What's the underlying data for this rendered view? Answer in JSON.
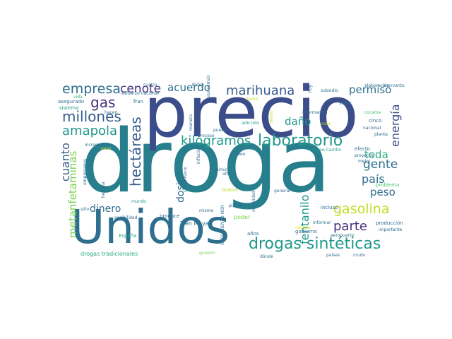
{
  "palette": {
    "dark_purple": "#46327e",
    "indigo": "#3b4d8a",
    "navy": "#365c8d",
    "steel": "#2e6e8e",
    "blue_teal": "#277f8e",
    "teal": "#1f988b",
    "green_teal": "#2aaa82",
    "green": "#4ac16d",
    "light_green": "#7ad151",
    "lime": "#bddf26",
    "yellow": "#e2e418",
    "deep_purple": "#482878",
    "white": "#ffffff"
  },
  "words": [
    {
      "text": "droga",
      "color": "blue_teal"
    },
    {
      "text": "precio",
      "color": "indigo"
    },
    {
      "text": "Unidos",
      "color": "steel"
    },
    {
      "text": "drogas sintéticas",
      "color": "teal"
    },
    {
      "text": "laboratorio",
      "color": "teal"
    },
    {
      "text": "hectáreas",
      "color": "navy"
    },
    {
      "text": "gasolina",
      "color": "lime"
    },
    {
      "text": "millones",
      "color": "navy"
    },
    {
      "text": "kilógramos",
      "color": "teal"
    },
    {
      "text": "marihuana",
      "color": "navy"
    },
    {
      "text": "metanfetaminas",
      "color": "light_green"
    },
    {
      "text": "empresa",
      "color": "steel"
    },
    {
      "text": "amapola",
      "color": "teal"
    },
    {
      "text": "energía",
      "color": "indigo"
    },
    {
      "text": "fentanilo",
      "color": "teal"
    },
    {
      "text": "cenote",
      "color": "dark_purple"
    },
    {
      "text": "acuerdo",
      "color": "steel"
    },
    {
      "text": "permiso",
      "color": "steel"
    },
    {
      "text": "gente",
      "color": "steel"
    },
    {
      "text": "toda",
      "color": "green_teal"
    },
    {
      "text": "país",
      "color": "steel"
    },
    {
      "text": "peso",
      "color": "steel"
    },
    {
      "text": "parte",
      "color": "dark_purple"
    },
    {
      "text": "gas",
      "color": "dark_purple"
    },
    {
      "text": "daño",
      "color": "teal"
    },
    {
      "text": "dosis",
      "color": "steel"
    },
    {
      "text": "cuanto",
      "color": "navy"
    },
    {
      "text": "dinero",
      "color": "steel"
    },
    {
      "text": "vida",
      "color": "green_teal"
    },
    {
      "text": "asegurado",
      "color": "steel"
    },
    {
      "text": "Tran",
      "color": "steel"
    },
    {
      "text": "cuatro",
      "color": "steel"
    },
    {
      "text": "Biden",
      "color": "steel"
    },
    {
      "text": "uso común",
      "color": "steel"
    },
    {
      "text": "hoy",
      "color": "steel"
    },
    {
      "text": "subsidio",
      "color": "steel"
    },
    {
      "text": "elaboración",
      "color": "steel"
    },
    {
      "text": "enervante",
      "color": "steel"
    },
    {
      "text": "valor",
      "color": "steel"
    },
    {
      "text": "cocaína",
      "color": "green"
    },
    {
      "text": "cinco",
      "color": "steel"
    },
    {
      "text": "información",
      "color": "steel"
    },
    {
      "text": "vendo",
      "color": "lime"
    },
    {
      "text": "cosa",
      "color": "lime"
    },
    {
      "text": "adicción",
      "color": "teal"
    },
    {
      "text": "nacional",
      "color": "steel"
    },
    {
      "text": "planta",
      "color": "steel"
    },
    {
      "text": "efecto",
      "color": "steel"
    },
    {
      "text": "proyecto",
      "color": "steel"
    },
    {
      "text": "mejor",
      "color": "steel"
    },
    {
      "text": "problema",
      "color": "green"
    },
    {
      "text": "producción",
      "color": "steel"
    },
    {
      "text": "importante",
      "color": "steel"
    },
    {
      "text": "aeropuerto",
      "color": "steel"
    },
    {
      "text": "crudo",
      "color": "steel"
    },
    {
      "text": "países",
      "color": "steel"
    },
    {
      "text": "dónde",
      "color": "steel"
    },
    {
      "text": "años",
      "color": "steel"
    },
    {
      "text": "gobierno",
      "color": "steel"
    },
    {
      "text": "incluso",
      "color": "steel"
    },
    {
      "text": "informar",
      "color": "steel"
    },
    {
      "text": "camino",
      "color": "yellow"
    },
    {
      "text": "general",
      "color": "steel"
    },
    {
      "text": "poder",
      "color": "light_green"
    },
    {
      "text": "seguridad",
      "color": "steel"
    },
    {
      "text": "plantío",
      "color": "steel"
    },
    {
      "text": "quieren",
      "color": "light_green"
    },
    {
      "text": "CRECIMIENTO NOR",
      "color": "steel"
    },
    {
      "text": "mismo",
      "color": "steel"
    },
    {
      "text": "Tren Maya",
      "color": "steel"
    },
    {
      "text": "produce",
      "color": "steel"
    },
    {
      "text": "España",
      "color": "green_teal"
    },
    {
      "text": "drogas tradicionales",
      "color": "green_teal"
    },
    {
      "text": "sólo",
      "color": "steel"
    },
    {
      "text": "mundo",
      "color": "teal"
    },
    {
      "text": "posibilidad",
      "color": "steel"
    },
    {
      "text": "heroína",
      "color": "steel"
    },
    {
      "text": "empresarios",
      "color": "steel"
    },
    {
      "text": "incremento",
      "color": "steel"
    },
    {
      "text": "sistema",
      "color": "teal"
    },
    {
      "text": "hacen",
      "color": "steel"
    },
    {
      "text": "esfuerzo nacional",
      "color": "steel"
    },
    {
      "text": "manera",
      "color": "steel"
    },
    {
      "text": "proceso",
      "color": "steel"
    },
    {
      "text": "pueblo",
      "color": "steel"
    },
    {
      "text": "inflación",
      "color": "steel"
    },
    {
      "text": "químico",
      "color": "steel"
    },
    {
      "text": "alto",
      "color": "steel"
    },
    {
      "text": "Carrillo Puerto",
      "color": "steel"
    },
    {
      "text": "buena",
      "color": "lime"
    },
    {
      "text": "Felipe Carrillo",
      "color": "teal"
    },
    {
      "text": "video",
      "color": "steel"
    },
    {
      "text": "humo",
      "color": "lime"
    },
    {
      "text": "paso",
      "color": "lime"
    }
  ]
}
